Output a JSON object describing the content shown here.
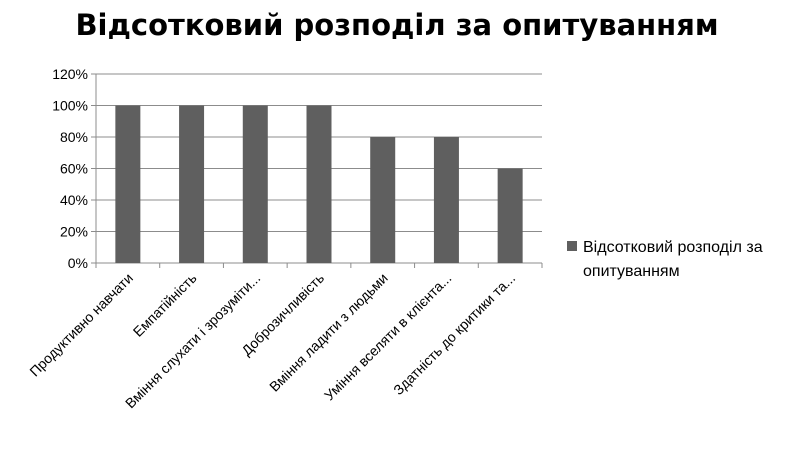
{
  "chart_data": {
    "type": "bar",
    "title": "Відсотковий розподіл за опитуванням",
    "categories": [
      "Продуктивно навчати",
      "Емпатійність",
      "Вміння слухати і зрозуміти...",
      "Доброзичливість",
      "Вміння ладити з людьми",
      "Уміння вселяти в клієнта...",
      "Здатність до критики та..."
    ],
    "series": [
      {
        "name": "Відсотковий розподіл за опитуванням",
        "values": [
          100,
          100,
          100,
          100,
          80,
          80,
          60
        ]
      }
    ],
    "y_ticks": [
      "0%",
      "20%",
      "40%",
      "60%",
      "80%",
      "100%",
      "120%"
    ],
    "ylim": [
      0,
      120
    ],
    "y_unit": "%",
    "grid": true,
    "legend_position": "right",
    "legend_lines": [
      "Відсотковий розподіл за",
      "опитуванням"
    ],
    "colors": {
      "bar": "#5f5f5f",
      "grid": "#8c8c8c",
      "axis": "#8c8c8c"
    }
  }
}
